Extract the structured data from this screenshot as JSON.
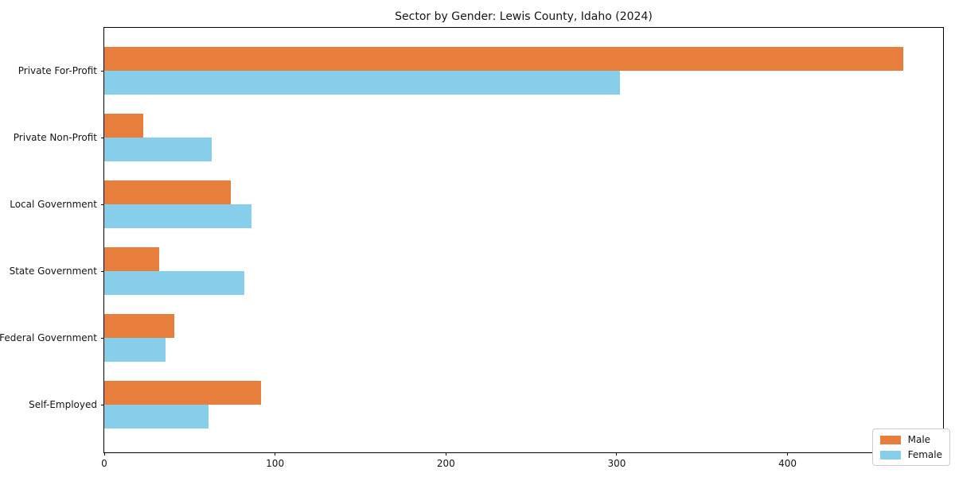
{
  "chart_data": {
    "type": "bar",
    "orientation": "horizontal",
    "title": "Sector by Gender: Lewis County, Idaho (2024)",
    "categories": [
      "Private For-Profit",
      "Private Non-Profit",
      "Local Government",
      "State Government",
      "Federal Government",
      "Self-Employed"
    ],
    "series": [
      {
        "name": "Male",
        "color": "#e87e3c",
        "values": [
          468,
          23,
          74,
          32,
          41,
          92
        ]
      },
      {
        "name": "Female",
        "color": "#87ceeb",
        "values": [
          302,
          63,
          86,
          82,
          36,
          61
        ]
      }
    ],
    "xlabel": "",
    "ylabel": "",
    "xlim": [
      0,
      492
    ],
    "xticks": [
      0,
      100,
      200,
      300,
      400
    ],
    "grid": false,
    "legend_position": "lower right"
  },
  "colors": {
    "male": "#e87e3c",
    "female": "#87ceeb",
    "spine": "#000000",
    "legend_border": "#cccccc",
    "background": "#ffffff",
    "text": "#151515"
  }
}
